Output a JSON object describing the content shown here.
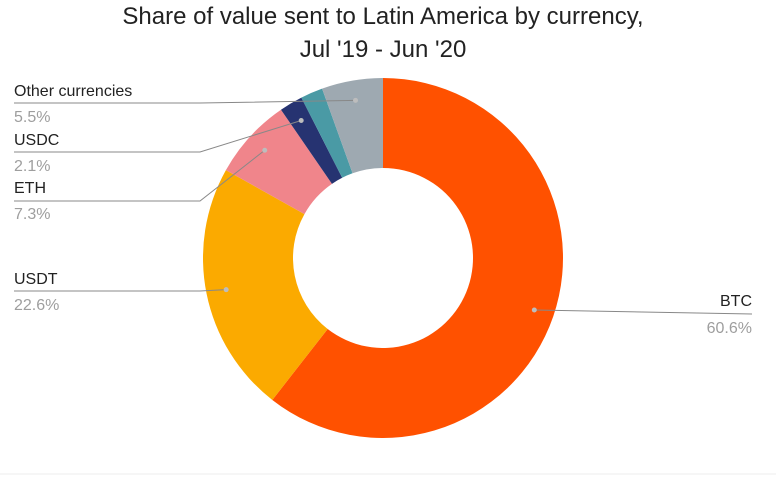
{
  "chart_data": {
    "type": "pie",
    "donut": true,
    "title": "Share of value sent to Latin America by currency,",
    "subtitle": "Jul '19 - Jun '20",
    "start_angle_deg": 0,
    "direction": "clockwise",
    "slices": [
      {
        "name": "BTC",
        "value": 60.6,
        "label": "60.6%",
        "color": "#ff5100"
      },
      {
        "name": "USDT",
        "value": 22.6,
        "label": "22.6%",
        "color": "#fbaa00"
      },
      {
        "name": "ETH",
        "value": 7.3,
        "label": "7.3%",
        "color": "#f0858b"
      },
      {
        "name": "USDC",
        "value": 2.1,
        "label": "2.1%",
        "color": "#263371"
      },
      {
        "name": "",
        "value": 2.0,
        "label": "",
        "color": "#4a9aa5"
      },
      {
        "name": "Other currencies",
        "value": 5.5,
        "label": "5.5%",
        "color": "#9ea9b1"
      }
    ],
    "legend": "none",
    "data_labels": "outside-with-leader-lines"
  }
}
